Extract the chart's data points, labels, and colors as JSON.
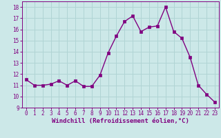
{
  "x": [
    0,
    1,
    2,
    3,
    4,
    5,
    6,
    7,
    8,
    9,
    10,
    11,
    12,
    13,
    14,
    15,
    16,
    17,
    18,
    19,
    20,
    21,
    22,
    23
  ],
  "y": [
    11.5,
    11.0,
    11.0,
    11.1,
    11.4,
    11.0,
    11.4,
    10.9,
    10.9,
    11.9,
    13.9,
    15.4,
    16.7,
    17.2,
    15.8,
    16.2,
    16.3,
    18.0,
    15.8,
    15.2,
    13.5,
    11.0,
    10.2,
    9.5
  ],
  "line_color": "#800080",
  "marker": "s",
  "markersize": 2.2,
  "linewidth": 1.0,
  "bg_color": "#cce8e8",
  "grid_color": "#b0d4d4",
  "xlabel": "Windchill (Refroidissement éolien,°C)",
  "xlabel_fontsize": 6.5,
  "xlabel_color": "#800080",
  "tick_color": "#800080",
  "ylim": [
    9,
    18.5
  ],
  "yticks": [
    9,
    10,
    11,
    12,
    13,
    14,
    15,
    16,
    17,
    18
  ],
  "xticks": [
    0,
    1,
    2,
    3,
    4,
    5,
    6,
    7,
    8,
    9,
    10,
    11,
    12,
    13,
    14,
    15,
    16,
    17,
    18,
    19,
    20,
    21,
    22,
    23
  ],
  "tick_fontsize": 5.5,
  "ylabel_fontsize": 6.5
}
